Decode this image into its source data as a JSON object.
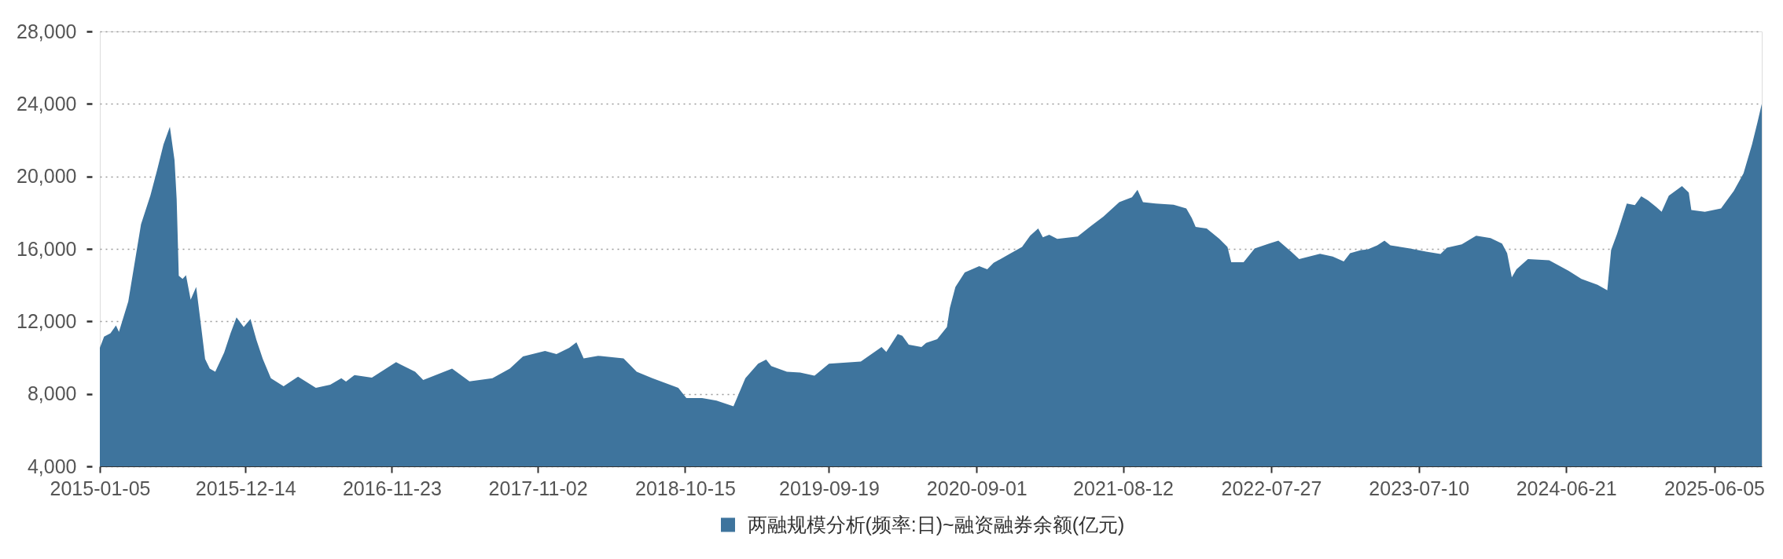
{
  "chart_data": {
    "type": "area",
    "x": [
      "2015-01-05",
      "2015-01-15",
      "2015-01-30",
      "2015-02-12",
      "2015-02-19",
      "2015-03-13",
      "2015-04-12",
      "2015-05-04",
      "2015-05-20",
      "2015-06-04",
      "2015-06-19",
      "2015-06-30",
      "2015-07-05",
      "2015-07-10",
      "2015-07-19",
      "2015-07-27",
      "2015-08-07",
      "2015-08-20",
      "2015-08-30",
      "2015-09-10",
      "2015-09-21",
      "2015-10-04",
      "2015-10-25",
      "2015-11-09",
      "2015-11-23",
      "2015-12-10",
      "2015-12-26",
      "2016-01-09",
      "2016-01-24",
      "2016-02-12",
      "2016-03-13",
      "2016-04-16",
      "2016-05-28",
      "2016-07-01",
      "2016-07-27",
      "2016-08-07",
      "2016-08-27",
      "2016-10-07",
      "2016-12-03",
      "2017-01-17",
      "2017-02-05",
      "2017-04-14",
      "2017-05-25",
      "2017-07-18",
      "2017-08-28",
      "2017-09-28",
      "2017-11-19",
      "2017-12-16",
      "2018-01-15",
      "2018-02-01",
      "2018-02-18",
      "2018-03-24",
      "2018-05-23",
      "2018-06-23",
      "2018-07-30",
      "2018-09-29",
      "2018-10-18",
      "2018-11-24",
      "2018-12-28",
      "2019-02-06",
      "2019-03-06",
      "2019-04-05",
      "2019-04-24",
      "2019-05-06",
      "2019-06-12",
      "2019-07-13",
      "2019-08-16",
      "2019-09-19",
      "2019-12-03",
      "2020-01-21",
      "2020-02-01",
      "2020-02-28",
      "2020-03-10",
      "2020-03-25",
      "2020-04-24",
      "2020-05-05",
      "2020-05-31",
      "2020-06-23",
      "2020-06-30",
      "2020-07-13",
      "2020-08-04",
      "2020-09-07",
      "2020-09-26",
      "2020-10-11",
      "2020-11-14",
      "2020-12-17",
      "2021-01-05",
      "2021-01-24",
      "2021-02-04",
      "2021-02-19",
      "2021-03-10",
      "2021-04-27",
      "2021-05-28",
      "2021-06-27",
      "2021-08-03",
      "2021-09-02",
      "2021-09-15",
      "2021-09-28",
      "2021-10-28",
      "2021-12-09",
      "2022-01-08",
      "2022-01-21",
      "2022-01-30",
      "2022-02-25",
      "2022-03-27",
      "2022-04-15",
      "2022-04-24",
      "2022-05-23",
      "2022-06-18",
      "2022-07-22",
      "2022-08-13",
      "2022-09-12",
      "2022-10-01",
      "2022-11-19",
      "2022-12-19",
      "2023-01-14",
      "2023-01-29",
      "2023-02-24",
      "2023-03-11",
      "2023-04-03",
      "2023-04-20",
      "2023-05-04",
      "2023-06-19",
      "2023-07-27",
      "2023-08-30",
      "2023-09-14",
      "2023-10-19",
      "2023-11-22",
      "2023-12-26",
      "2024-01-22",
      "2024-02-03",
      "2024-02-14",
      "2024-02-25",
      "2024-03-23",
      "2024-05-12",
      "2024-06-27",
      "2024-07-27",
      "2024-09-03",
      "2024-09-26",
      "2024-10-05",
      "2024-10-19",
      "2024-11-11",
      "2024-11-30",
      "2024-12-15",
      "2024-12-31",
      "2025-01-19",
      "2025-02-01",
      "2025-02-18",
      "2025-03-21",
      "2025-04-06",
      "2025-04-12",
      "2025-05-14",
      "2025-06-21",
      "2025-07-21",
      "2025-08-13",
      "2025-09-02",
      "2025-09-15",
      "2025-09-25"
    ],
    "series": [
      {
        "name": "两融规模分析(频率:日)~融资融券余额(亿元)",
        "color": "#3e749d",
        "values": [
          10540,
          11160,
          11340,
          11780,
          11420,
          13100,
          17350,
          18940,
          20350,
          21760,
          22740,
          20880,
          18760,
          14520,
          14340,
          14550,
          13190,
          13900,
          12040,
          9920,
          9390,
          9220,
          10280,
          11340,
          12220,
          11690,
          12130,
          10980,
          9920,
          8860,
          8420,
          8950,
          8330,
          8510,
          8860,
          8680,
          9040,
          8900,
          9750,
          9220,
          8770,
          9390,
          8690,
          8860,
          9390,
          10060,
          10370,
          10190,
          10540,
          10840,
          9960,
          10100,
          9960,
          9220,
          8860,
          8330,
          7770,
          7770,
          7630,
          7310,
          8860,
          9660,
          9890,
          9530,
          9220,
          9180,
          9000,
          9660,
          9780,
          10590,
          10310,
          11300,
          11200,
          10720,
          10590,
          10810,
          11020,
          11690,
          12750,
          13900,
          14700,
          15050,
          14870,
          15230,
          15670,
          16110,
          16730,
          17130,
          16640,
          16780,
          16550,
          16680,
          17260,
          17790,
          18580,
          18850,
          19260,
          18580,
          18500,
          18440,
          18230,
          17700,
          17210,
          17130,
          16550,
          16110,
          15260,
          15260,
          16020,
          16290,
          16460,
          15850,
          15440,
          15730,
          15580,
          15310,
          15760,
          15940,
          15970,
          16200,
          16460,
          16200,
          16020,
          15850,
          15720,
          16070,
          16250,
          16730,
          16600,
          16290,
          15760,
          14430,
          14870,
          15440,
          15370,
          14790,
          14340,
          14020,
          13720,
          15930,
          16820,
          18500,
          18410,
          18900,
          18670,
          18320,
          18050,
          18940,
          19470,
          19110,
          18140,
          18050,
          18230,
          19200,
          20170,
          21760,
          23000,
          24000
        ]
      }
    ],
    "xlim": [
      "2015-01-05",
      "2025-09-25"
    ],
    "xticks": [
      "2015-01-05",
      "2015-12-14",
      "2016-11-23",
      "2017-11-02",
      "2018-10-15",
      "2019-09-19",
      "2020-09-01",
      "2021-08-12",
      "2022-07-27",
      "2023-07-10",
      "2024-06-21",
      "2025-06-05"
    ],
    "ylim": [
      4000,
      28000
    ],
    "yticks": [
      {
        "value": 4000,
        "label": "4,000"
      },
      {
        "value": 8000,
        "label": "8,000"
      },
      {
        "value": 12000,
        "label": "12,000"
      },
      {
        "value": 16000,
        "label": "16,000"
      },
      {
        "value": 20000,
        "label": "20,000"
      },
      {
        "value": 24000,
        "label": "24,000"
      },
      {
        "value": 28000,
        "label": "28,000"
      }
    ],
    "grid": "y",
    "legend": "bottom"
  }
}
